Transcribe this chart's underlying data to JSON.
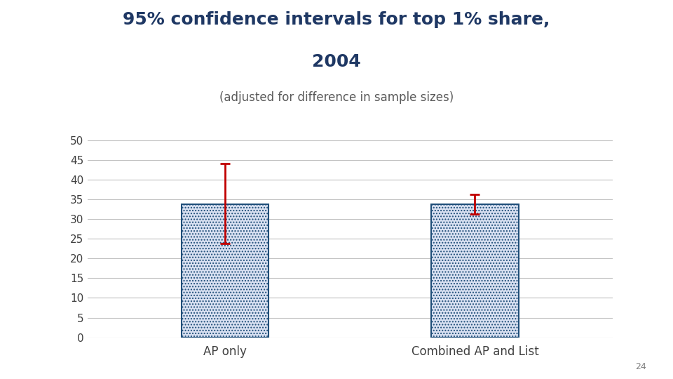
{
  "title_line1": "95% confidence intervals for top 1% share,",
  "title_line2": "2004",
  "subtitle": "(adjusted for difference in sample sizes)",
  "categories": [
    "AP only",
    "Combined AP and List"
  ],
  "values": [
    33.8,
    33.8
  ],
  "ci_upper": [
    44.0,
    36.2
  ],
  "ci_lower": [
    23.8,
    31.2
  ],
  "ylim": [
    0,
    50
  ],
  "yticks": [
    0,
    5,
    10,
    15,
    20,
    25,
    30,
    35,
    40,
    45,
    50
  ],
  "bar_edge_color": "#1F4E79",
  "bar_fill_color": "#D9E1F2",
  "error_color": "#C00000",
  "title_color": "#1F3864",
  "subtitle_color": "#595959",
  "background_color": "#FFFFFF",
  "grid_color": "#C0C0C0",
  "page_number": "24",
  "title_fontsize": 18,
  "subtitle_fontsize": 12,
  "tick_label_fontsize": 11,
  "xlabel_fontsize": 12,
  "error_linewidth": 2.0,
  "error_capsize": 5,
  "bar_width": 0.35
}
